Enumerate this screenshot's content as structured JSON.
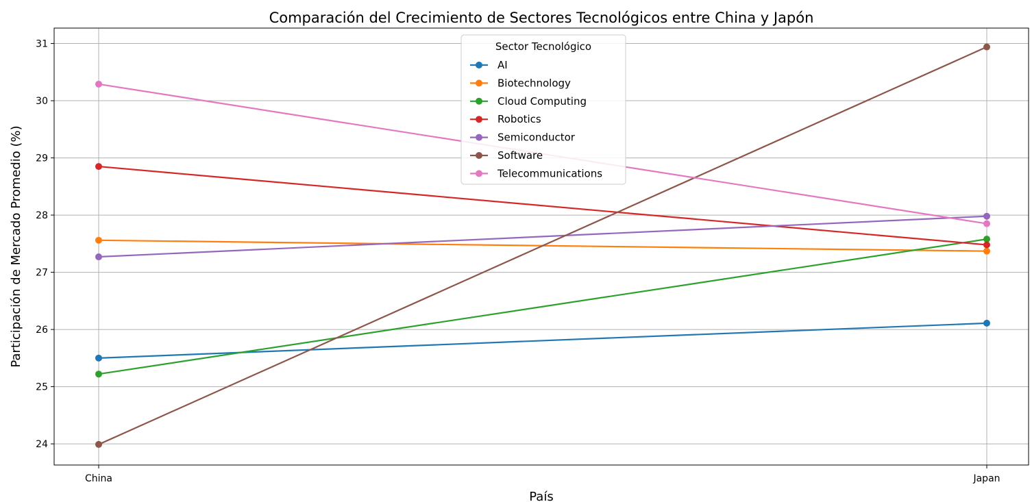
{
  "chart_data": {
    "type": "line",
    "title": "Comparación del Crecimiento de Sectores Tecnológicos entre China y Japón",
    "xlabel": "País",
    "ylabel": "Participación de Mercado Promedio (%)",
    "categories": [
      "China",
      "Japan"
    ],
    "ylim": [
      23.63,
      31.27
    ],
    "yticks": [
      "24",
      "25",
      "26",
      "27",
      "28",
      "29",
      "30",
      "31"
    ],
    "grid": true,
    "legend": {
      "title": "Sector Tecnológico",
      "placement": "upper-center"
    },
    "series": [
      {
        "name": "AI",
        "color": "#1f77b4",
        "values": [
          25.5,
          26.11
        ]
      },
      {
        "name": "Biotechnology",
        "color": "#ff7f0e",
        "values": [
          27.56,
          27.37
        ]
      },
      {
        "name": "Cloud Computing",
        "color": "#2ca02c",
        "values": [
          25.22,
          27.58
        ]
      },
      {
        "name": "Robotics",
        "color": "#d62728",
        "values": [
          28.85,
          27.48
        ]
      },
      {
        "name": "Semiconductor",
        "color": "#9467bd",
        "values": [
          27.27,
          27.98
        ]
      },
      {
        "name": "Software",
        "color": "#8c564b",
        "values": [
          23.99,
          30.94
        ]
      },
      {
        "name": "Telecommunications",
        "color": "#e377c2",
        "values": [
          30.29,
          27.85
        ]
      }
    ]
  }
}
